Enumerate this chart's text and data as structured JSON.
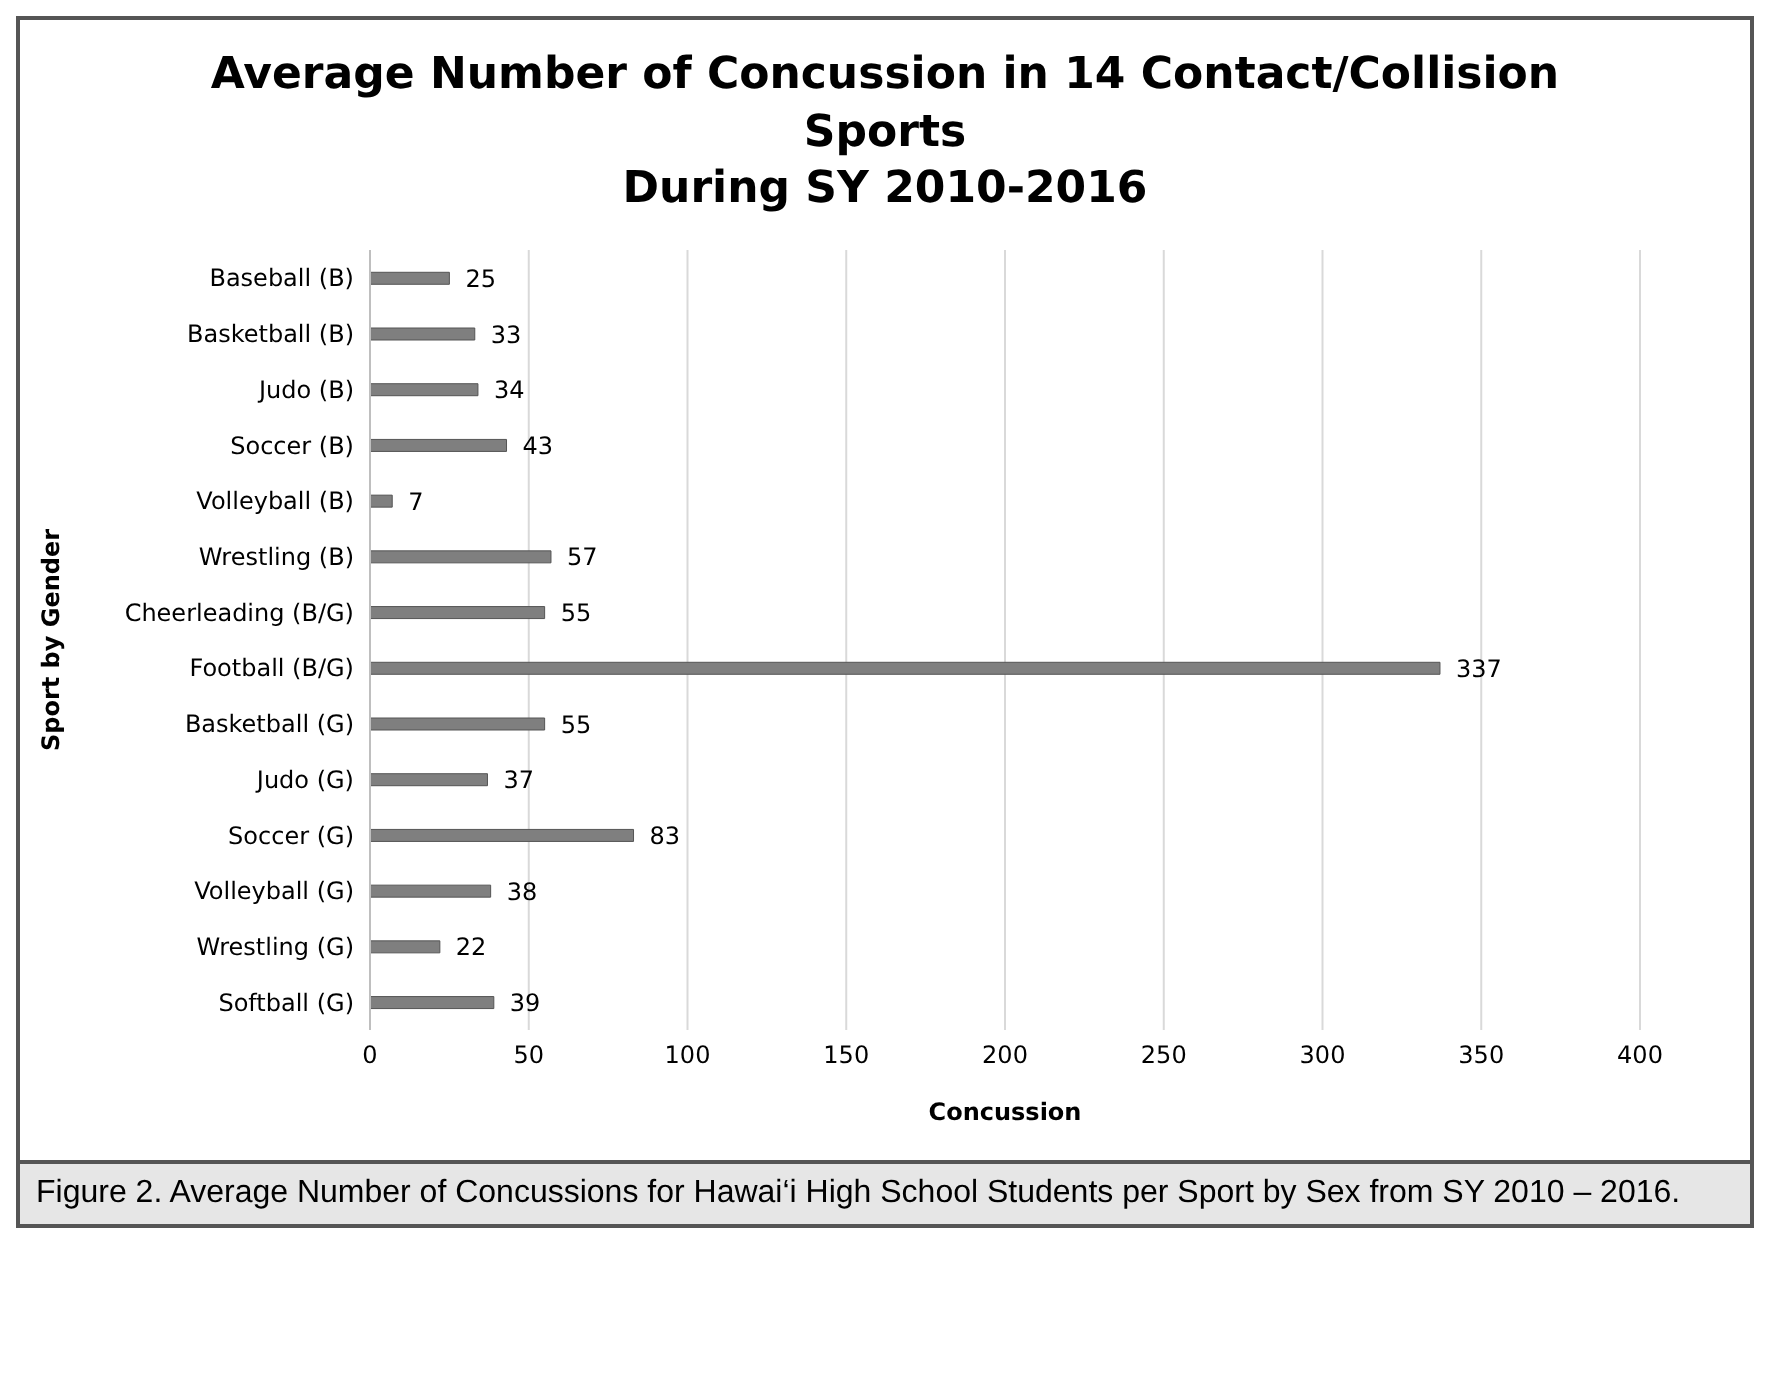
{
  "chart_data": {
    "type": "bar",
    "orientation": "horizontal",
    "title": "Average Number of Concussion in 14 Contact/Collision Sports\nDuring SY 2010-2016",
    "xlabel": "Concussion",
    "ylabel": "Sport by Gender",
    "categories": [
      "Baseball (B)",
      "Basketball (B)",
      "Judo (B)",
      "Soccer (B)",
      "Volleyball (B)",
      "Wrestling (B)",
      "Cheerleading (B/G)",
      "Football (B/G)",
      "Basketball (G)",
      "Judo (G)",
      "Soccer (G)",
      "Volleyball (G)",
      "Wrestling (G)",
      "Softball (G)"
    ],
    "values": [
      25,
      33,
      34,
      43,
      7,
      57,
      55,
      337,
      55,
      37,
      83,
      38,
      22,
      39
    ],
    "color": "#7f7f7f",
    "xlim": [
      0,
      400
    ],
    "xticks": [
      0,
      50,
      100,
      150,
      200,
      250,
      300,
      350,
      400
    ],
    "grid": "x",
    "data_labels": true,
    "annotations": [
      "Figure 2. Average Number of Concussions for Hawai‘i High School Students per Sport by Sex from SY 2010 – 2016."
    ]
  }
}
